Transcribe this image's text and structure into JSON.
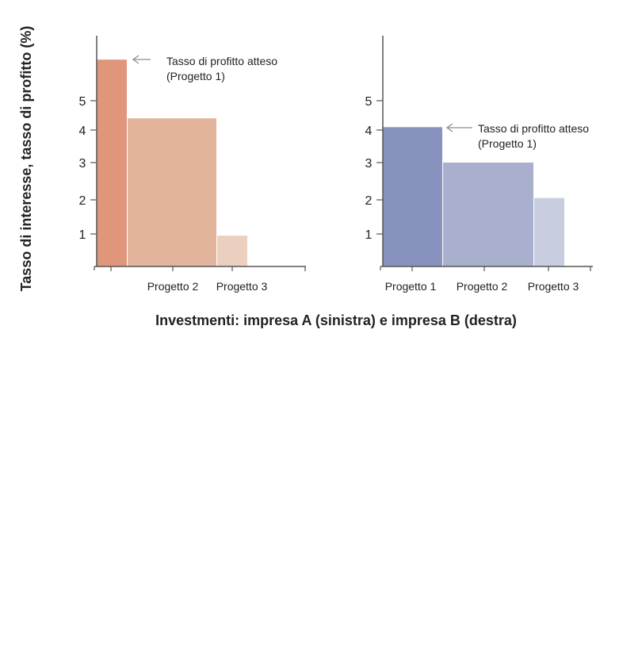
{
  "chart_data": [
    {
      "type": "bar",
      "panel": "left",
      "categories": [
        "Progetto 1",
        "Progetto 2",
        "Progetto 3"
      ],
      "category_labels_shown": [
        "",
        "Progetto 2",
        "Progetto 3"
      ],
      "values": [
        6.4,
        4.4,
        0.95
      ],
      "colors": [
        "#e0967b",
        "#e2b49b",
        "#ecd0bf"
      ],
      "yticks": [
        1,
        2,
        3,
        4,
        5
      ],
      "annotation": {
        "line1": "Tasso di profitto atteso",
        "line2": "(Progetto 1)"
      }
    },
    {
      "type": "bar",
      "panel": "right",
      "categories": [
        "Progetto 1",
        "Progetto 2",
        "Progetto 3"
      ],
      "category_labels_shown": [
        "Progetto 1",
        "Progetto 2",
        "Progetto 3"
      ],
      "values": [
        4.1,
        3.0,
        2.05
      ],
      "colors": [
        "#8793be",
        "#a9b0cd",
        "#c8cde0"
      ],
      "yticks": [
        1,
        2,
        3,
        4,
        5
      ],
      "annotation": {
        "line1": "Tasso di profitto atteso",
        "line2": "(Progetto 1)"
      }
    }
  ],
  "ylabel": "Tasso di interesse, tasso di profitto (%)",
  "xlabel": "Investmenti: impresa A (sinistra) e impresa B (destra)",
  "axis_color": "#555555",
  "arrow_color": "#8a9099"
}
